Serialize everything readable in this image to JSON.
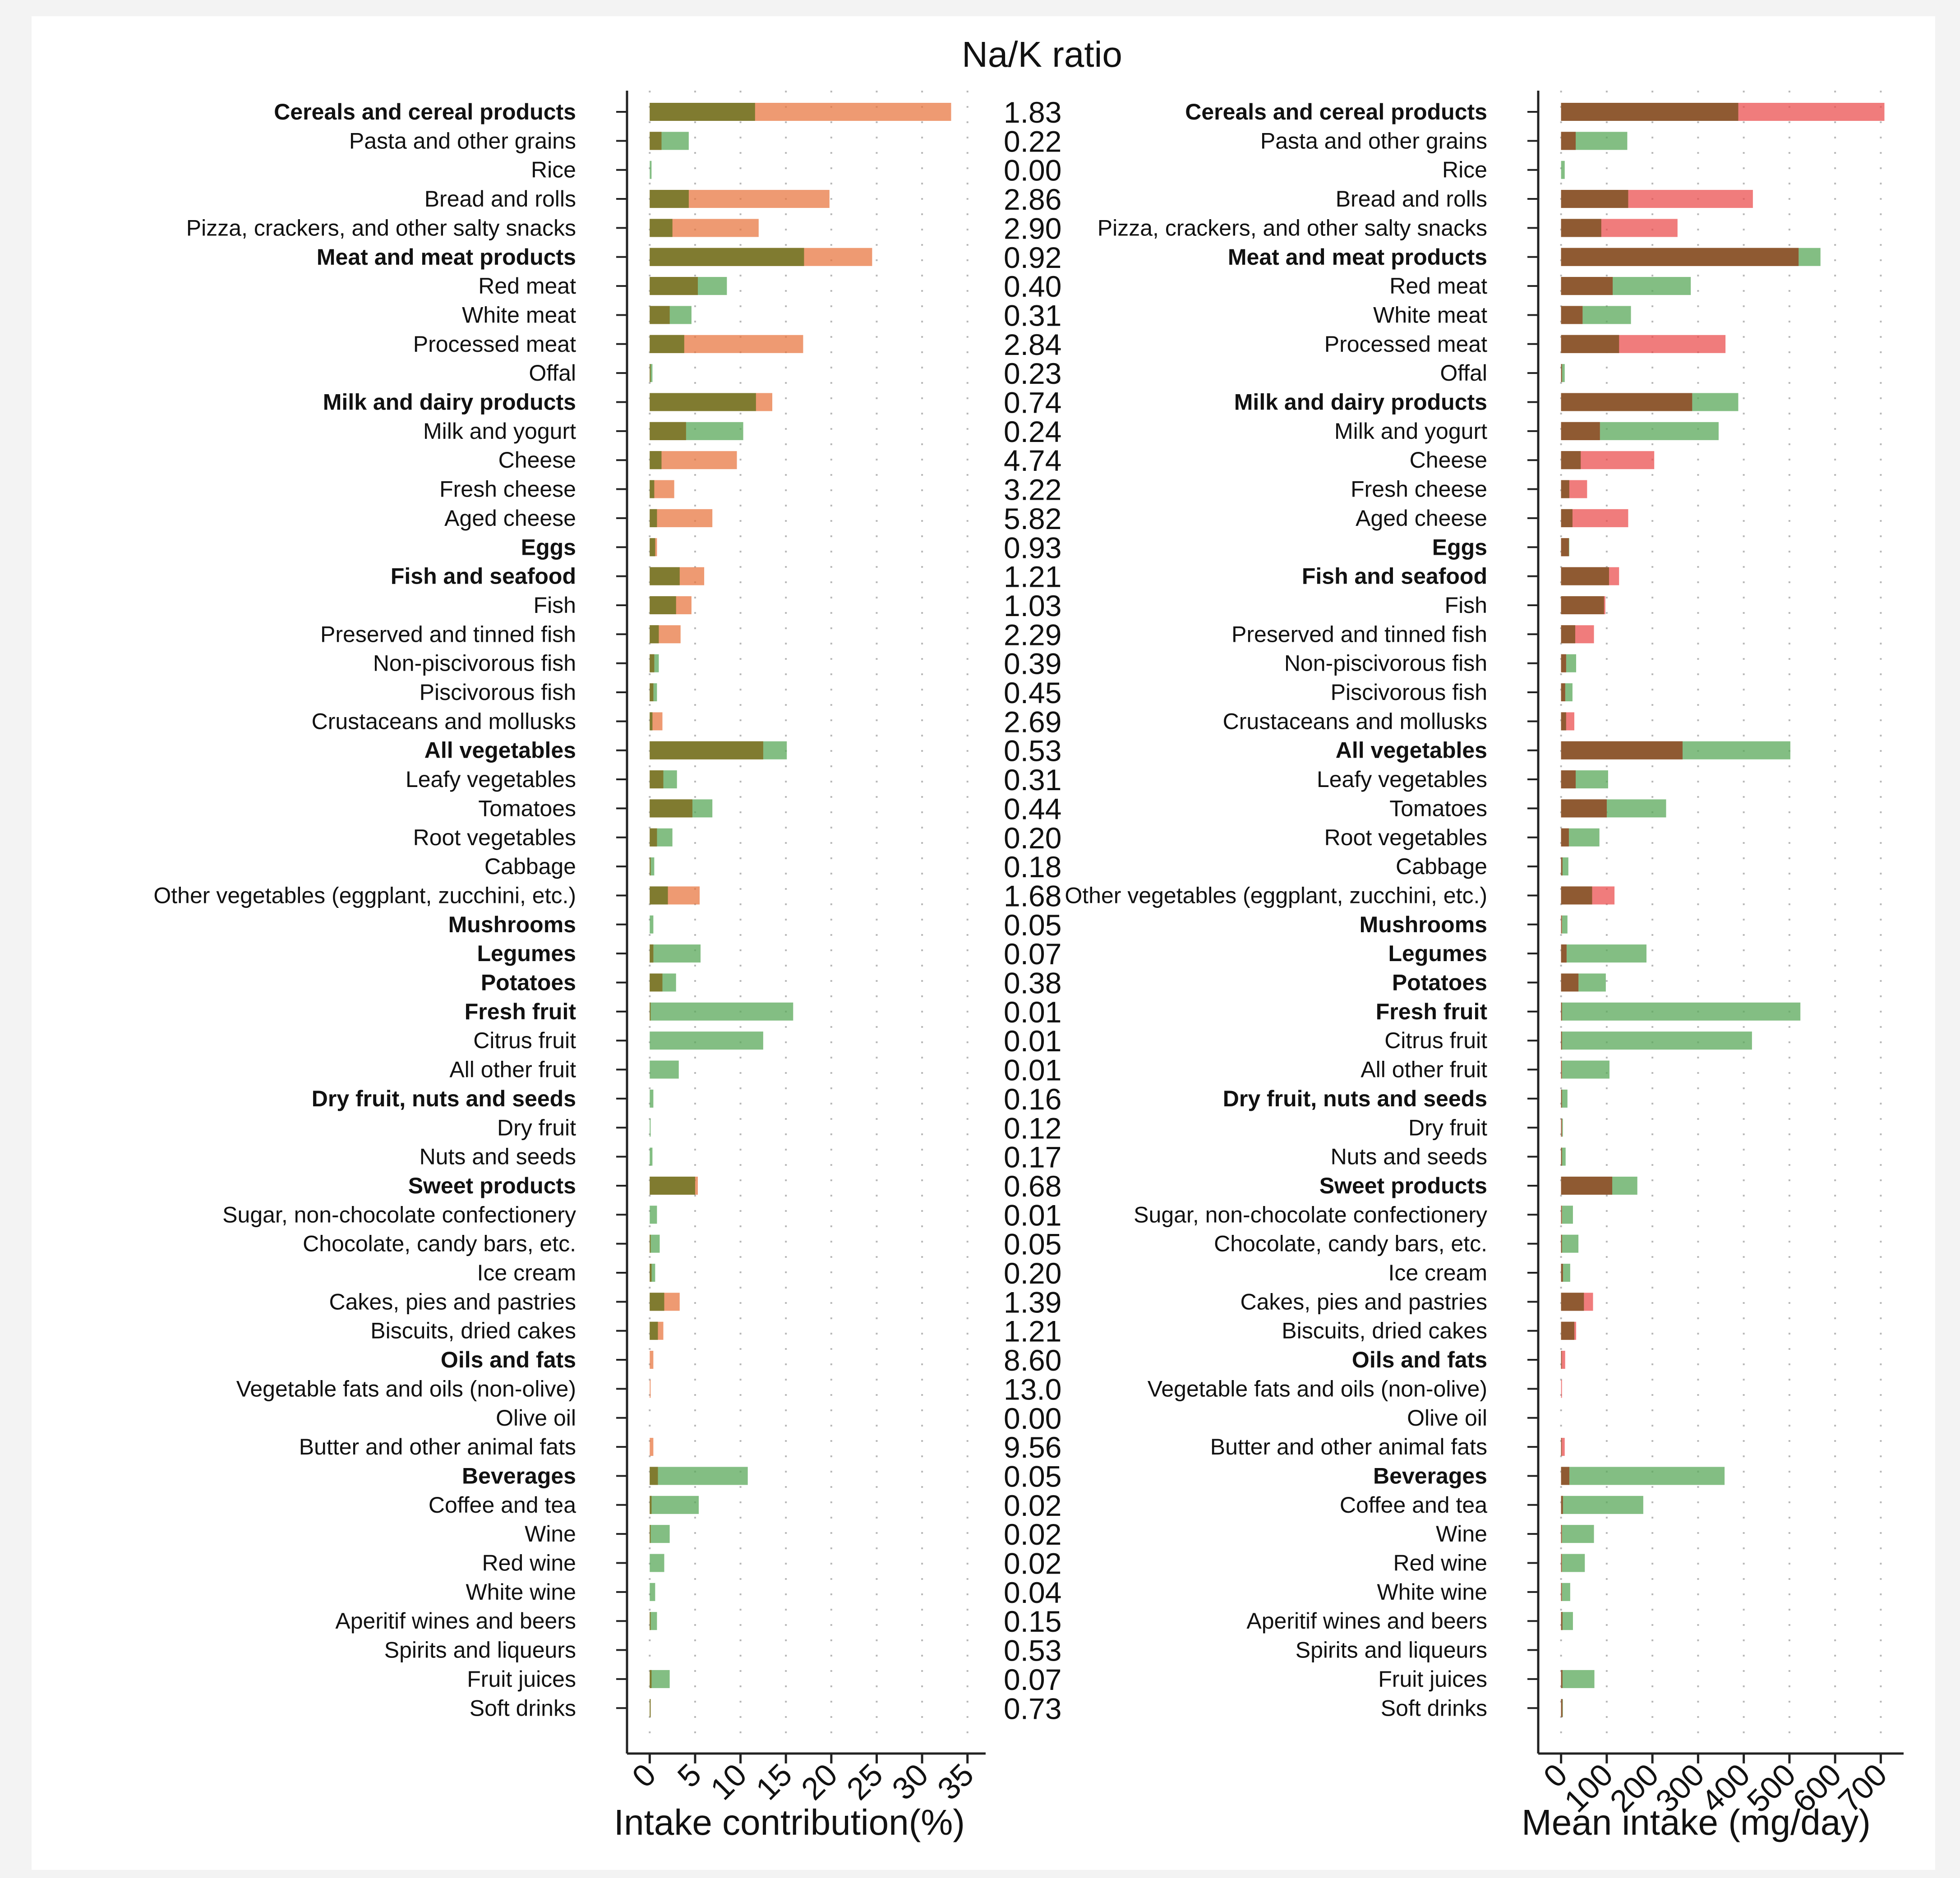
{
  "chart_data": {
    "type": "bar",
    "title": "Na/K ratio",
    "colors": {
      "sodium": "#e8733c",
      "potassium": "#5aa85a",
      "overlap": "#7b7a2e",
      "sodium_right": "#ea4a4a",
      "overlap_right": "#8b5a30",
      "axis": "#222222",
      "grid": "#b9b9b9"
    },
    "categories": [
      {
        "label": "Cereals and cereal products",
        "bold": true,
        "ratio": "1.83",
        "pct_na": 33.2,
        "pct_k": 11.6,
        "mg_na": 708,
        "mg_k": 388
      },
      {
        "label": "Pasta and other grains",
        "bold": false,
        "ratio": "0.22",
        "pct_na": 1.3,
        "pct_k": 4.3,
        "mg_na": 32,
        "mg_k": 145
      },
      {
        "label": "Rice",
        "bold": false,
        "ratio": "0.00",
        "pct_na": 0.0,
        "pct_k": 0.2,
        "mg_na": 0,
        "mg_k": 8
      },
      {
        "label": "Bread and rolls",
        "bold": false,
        "ratio": "2.86",
        "pct_na": 19.8,
        "pct_k": 4.3,
        "mg_na": 420,
        "mg_k": 147
      },
      {
        "label": "Pizza, crackers, and other salty snacks",
        "bold": false,
        "ratio": "2.90",
        "pct_na": 12.0,
        "pct_k": 2.5,
        "mg_na": 255,
        "mg_k": 88
      },
      {
        "label": "Meat and meat products",
        "bold": true,
        "ratio": "0.92",
        "pct_na": 24.5,
        "pct_k": 17.0,
        "mg_na": 520,
        "mg_k": 568
      },
      {
        "label": "Red meat",
        "bold": false,
        "ratio": "0.40",
        "pct_na": 5.3,
        "pct_k": 8.5,
        "mg_na": 113,
        "mg_k": 284
      },
      {
        "label": "White meat",
        "bold": false,
        "ratio": "0.31",
        "pct_na": 2.2,
        "pct_k": 4.6,
        "mg_na": 47,
        "mg_k": 153
      },
      {
        "label": "Processed meat",
        "bold": false,
        "ratio": "2.84",
        "pct_na": 16.9,
        "pct_k": 3.8,
        "mg_na": 360,
        "mg_k": 127
      },
      {
        "label": "Offal",
        "bold": false,
        "ratio": "0.23",
        "pct_na": 0.1,
        "pct_k": 0.3,
        "mg_na": 2,
        "mg_k": 8
      },
      {
        "label": "Milk and dairy products",
        "bold": true,
        "ratio": "0.74",
        "pct_na": 13.5,
        "pct_k": 11.7,
        "mg_na": 287,
        "mg_k": 388
      },
      {
        "label": "Milk and yogurt",
        "bold": false,
        "ratio": "0.24",
        "pct_na": 4.0,
        "pct_k": 10.3,
        "mg_na": 85,
        "mg_k": 345
      },
      {
        "label": "Cheese",
        "bold": false,
        "ratio": "4.74",
        "pct_na": 9.6,
        "pct_k": 1.3,
        "mg_na": 204,
        "mg_k": 43
      },
      {
        "label": "Fresh cheese",
        "bold": false,
        "ratio": "3.22",
        "pct_na": 2.7,
        "pct_k": 0.5,
        "mg_na": 57,
        "mg_k": 18
      },
      {
        "label": "Aged cheese",
        "bold": false,
        "ratio": "5.82",
        "pct_na": 6.9,
        "pct_k": 0.8,
        "mg_na": 147,
        "mg_k": 25
      },
      {
        "label": "Eggs",
        "bold": true,
        "ratio": "0.93",
        "pct_na": 0.8,
        "pct_k": 0.6,
        "mg_na": 17,
        "mg_k": 18
      },
      {
        "label": "Fish and seafood",
        "bold": true,
        "ratio": "1.21",
        "pct_na": 6.0,
        "pct_k": 3.3,
        "mg_na": 127,
        "mg_k": 105
      },
      {
        "label": "Fish",
        "bold": false,
        "ratio": "1.03",
        "pct_na": 4.6,
        "pct_k": 2.9,
        "mg_na": 97,
        "mg_k": 94
      },
      {
        "label": "Preserved and tinned fish",
        "bold": false,
        "ratio": "2.29",
        "pct_na": 3.4,
        "pct_k": 1.0,
        "mg_na": 72,
        "mg_k": 31
      },
      {
        "label": "Non-piscivorous fish",
        "bold": false,
        "ratio": "0.39",
        "pct_na": 0.5,
        "pct_k": 1.0,
        "mg_na": 11,
        "mg_k": 33
      },
      {
        "label": "Piscivorous fish",
        "bold": false,
        "ratio": "0.45",
        "pct_na": 0.4,
        "pct_k": 0.8,
        "mg_na": 9,
        "mg_k": 25
      },
      {
        "label": "Crustaceans and mollusks",
        "bold": false,
        "ratio": "2.69",
        "pct_na": 1.4,
        "pct_k": 0.3,
        "mg_na": 29,
        "mg_k": 11
      },
      {
        "label": "All vegetables",
        "bold": true,
        "ratio": "0.53",
        "pct_na": 12.5,
        "pct_k": 15.1,
        "mg_na": 266,
        "mg_k": 502
      },
      {
        "label": "Leafy vegetables",
        "bold": false,
        "ratio": "0.31",
        "pct_na": 1.5,
        "pct_k": 3.0,
        "mg_na": 32,
        "mg_k": 103
      },
      {
        "label": "Tomatoes",
        "bold": false,
        "ratio": "0.44",
        "pct_na": 4.7,
        "pct_k": 6.9,
        "mg_na": 100,
        "mg_k": 230
      },
      {
        "label": "Root vegetables",
        "bold": false,
        "ratio": "0.20",
        "pct_na": 0.8,
        "pct_k": 2.5,
        "mg_na": 17,
        "mg_k": 84
      },
      {
        "label": "Cabbage",
        "bold": false,
        "ratio": "0.18",
        "pct_na": 0.1,
        "pct_k": 0.5,
        "mg_na": 3,
        "mg_k": 16
      },
      {
        "label": "Other vegetables (eggplant, zucchini, etc.)",
        "bold": false,
        "ratio": "1.68",
        "pct_na": 5.5,
        "pct_k": 2.0,
        "mg_na": 117,
        "mg_k": 68
      },
      {
        "label": "Mushrooms",
        "bold": true,
        "ratio": "0.05",
        "pct_na": 0.0,
        "pct_k": 0.4,
        "mg_na": 1,
        "mg_k": 14
      },
      {
        "label": "Legumes",
        "bold": true,
        "ratio": "0.07",
        "pct_na": 0.4,
        "pct_k": 5.6,
        "mg_na": 12,
        "mg_k": 187
      },
      {
        "label": "Potatoes",
        "bold": true,
        "ratio": "0.38",
        "pct_na": 1.4,
        "pct_k": 2.9,
        "mg_na": 38,
        "mg_k": 98
      },
      {
        "label": "Fresh fruit",
        "bold": true,
        "ratio": "0.01",
        "pct_na": 0.1,
        "pct_k": 15.8,
        "mg_na": 2,
        "mg_k": 524
      },
      {
        "label": "Citrus fruit",
        "bold": false,
        "ratio": "0.01",
        "pct_na": 0.0,
        "pct_k": 12.5,
        "mg_na": 2,
        "mg_k": 418
      },
      {
        "label": "All other fruit",
        "bold": false,
        "ratio": "0.01",
        "pct_na": 0.0,
        "pct_k": 3.2,
        "mg_na": 1,
        "mg_k": 106
      },
      {
        "label": "Dry fruit, nuts and seeds",
        "bold": true,
        "ratio": "0.16",
        "pct_na": 0.0,
        "pct_k": 0.4,
        "mg_na": 2,
        "mg_k": 14
      },
      {
        "label": "Dry fruit",
        "bold": false,
        "ratio": "0.12",
        "pct_na": 0.0,
        "pct_k": 0.1,
        "mg_na": 1,
        "mg_k": 4
      },
      {
        "label": "Nuts and seeds",
        "bold": false,
        "ratio": "0.17",
        "pct_na": 0.0,
        "pct_k": 0.3,
        "mg_na": 2,
        "mg_k": 10
      },
      {
        "label": "Sweet products",
        "bold": true,
        "ratio": "0.68",
        "pct_na": 5.3,
        "pct_k": 5.0,
        "mg_na": 112,
        "mg_k": 167
      },
      {
        "label": "Sugar, non-chocolate confectionery",
        "bold": false,
        "ratio": "0.01",
        "pct_na": 0.0,
        "pct_k": 0.8,
        "mg_na": 1,
        "mg_k": 26
      },
      {
        "label": "Chocolate, candy bars, etc.",
        "bold": false,
        "ratio": "0.05",
        "pct_na": 0.1,
        "pct_k": 1.1,
        "mg_na": 2,
        "mg_k": 38
      },
      {
        "label": "Ice cream",
        "bold": false,
        "ratio": "0.20",
        "pct_na": 0.2,
        "pct_k": 0.6,
        "mg_na": 4,
        "mg_k": 20
      },
      {
        "label": "Cakes, pies and pastries",
        "bold": false,
        "ratio": "1.39",
        "pct_na": 3.3,
        "pct_k": 1.6,
        "mg_na": 70,
        "mg_k": 50
      },
      {
        "label": "Biscuits, dried cakes",
        "bold": false,
        "ratio": "1.21",
        "pct_na": 1.5,
        "pct_k": 0.9,
        "mg_na": 33,
        "mg_k": 29
      },
      {
        "label": "Oils and fats",
        "bold": true,
        "ratio": "8.60",
        "pct_na": 0.4,
        "pct_k": 0.0,
        "mg_na": 9,
        "mg_k": 1
      },
      {
        "label": "Vegetable fats and oils (non-olive)",
        "bold": false,
        "ratio": "13.0",
        "pct_na": 0.05,
        "pct_k": 0.0,
        "mg_na": 1,
        "mg_k": 0
      },
      {
        "label": "Olive oil",
        "bold": false,
        "ratio": "0.00",
        "pct_na": 0.0,
        "pct_k": 0.0,
        "mg_na": 0,
        "mg_k": 0
      },
      {
        "label": "Butter and other animal fats",
        "bold": false,
        "ratio": "9.56",
        "pct_na": 0.4,
        "pct_k": 0.0,
        "mg_na": 8,
        "mg_k": 1
      },
      {
        "label": "Beverages",
        "bold": true,
        "ratio": "0.05",
        "pct_na": 0.9,
        "pct_k": 10.8,
        "mg_na": 18,
        "mg_k": 358
      },
      {
        "label": "Coffee and tea",
        "bold": false,
        "ratio": "0.02",
        "pct_na": 0.2,
        "pct_k": 5.4,
        "mg_na": 4,
        "mg_k": 180
      },
      {
        "label": "Wine",
        "bold": false,
        "ratio": "0.02",
        "pct_na": 0.1,
        "pct_k": 2.2,
        "mg_na": 1,
        "mg_k": 72
      },
      {
        "label": "Red wine",
        "bold": false,
        "ratio": "0.02",
        "pct_na": 0.0,
        "pct_k": 1.6,
        "mg_na": 1,
        "mg_k": 52
      },
      {
        "label": "White wine",
        "bold": false,
        "ratio": "0.04",
        "pct_na": 0.0,
        "pct_k": 0.6,
        "mg_na": 1,
        "mg_k": 20
      },
      {
        "label": "Aperitif wines and beers",
        "bold": false,
        "ratio": "0.15",
        "pct_na": 0.1,
        "pct_k": 0.8,
        "mg_na": 3,
        "mg_k": 26
      },
      {
        "label": "Spirits and liqueurs",
        "bold": false,
        "ratio": "0.53",
        "pct_na": 0.0,
        "pct_k": 0.0,
        "mg_na": 0,
        "mg_k": 0
      },
      {
        "label": "Fruit juices",
        "bold": false,
        "ratio": "0.07",
        "pct_na": 0.2,
        "pct_k": 2.2,
        "mg_na": 3,
        "mg_k": 73
      },
      {
        "label": "Soft drinks",
        "bold": false,
        "ratio": "0.73",
        "pct_na": 0.1,
        "pct_k": 0.1,
        "mg_na": 3,
        "mg_k": 4
      }
    ],
    "left_panel": {
      "xlabel": "Intake contribution(%)",
      "xlim": [
        -2.5,
        37
      ],
      "ticks": [
        "0",
        "5",
        "10",
        "15",
        "20",
        "25",
        "30",
        "35"
      ],
      "tick_values": [
        0,
        5,
        10,
        15,
        20,
        25,
        30,
        35
      ]
    },
    "right_panel": {
      "xlabel": "Mean intake (mg/day)",
      "xlim": [
        -50,
        750
      ],
      "ticks": [
        "0",
        "100",
        "200",
        "300",
        "400",
        "500",
        "600",
        "700"
      ],
      "tick_values": [
        0,
        100,
        200,
        300,
        400,
        500,
        600,
        700
      ]
    }
  }
}
